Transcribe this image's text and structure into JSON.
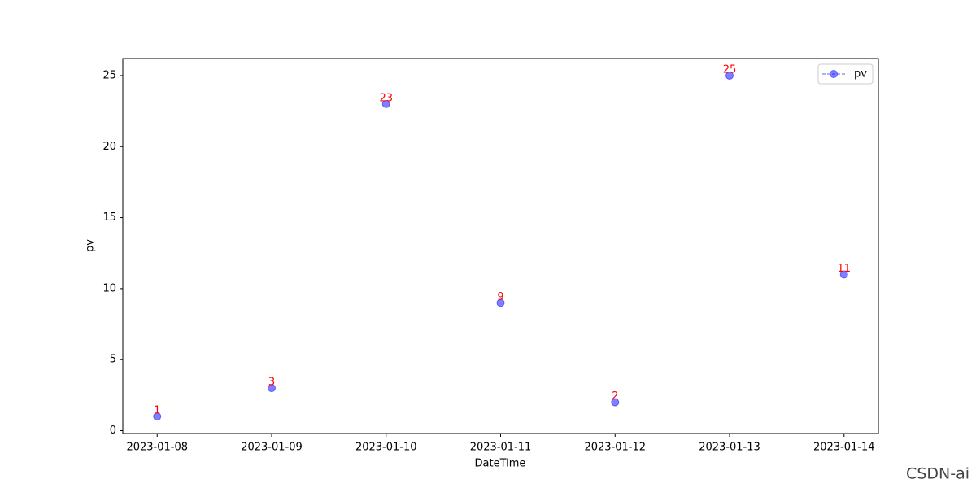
{
  "chart_data": {
    "type": "line",
    "x_label": "DateTime",
    "y_label": "pv",
    "categories": [
      "2023-01-08",
      "2023-01-09",
      "2023-01-10",
      "2023-01-11",
      "2023-01-12",
      "2023-01-13",
      "2023-01-14"
    ],
    "series": [
      {
        "name": "pv",
        "color": "#0000ff",
        "values": [
          1,
          3,
          23,
          9,
          2,
          25,
          11
        ]
      }
    ],
    "label_color": "#ff0000",
    "ylim": [
      -0.2,
      26.2
    ],
    "yticks": [
      0,
      5,
      10,
      15,
      20,
      25
    ],
    "legend": "upper right",
    "grid": false
  },
  "watermark": "CSDN-ai"
}
